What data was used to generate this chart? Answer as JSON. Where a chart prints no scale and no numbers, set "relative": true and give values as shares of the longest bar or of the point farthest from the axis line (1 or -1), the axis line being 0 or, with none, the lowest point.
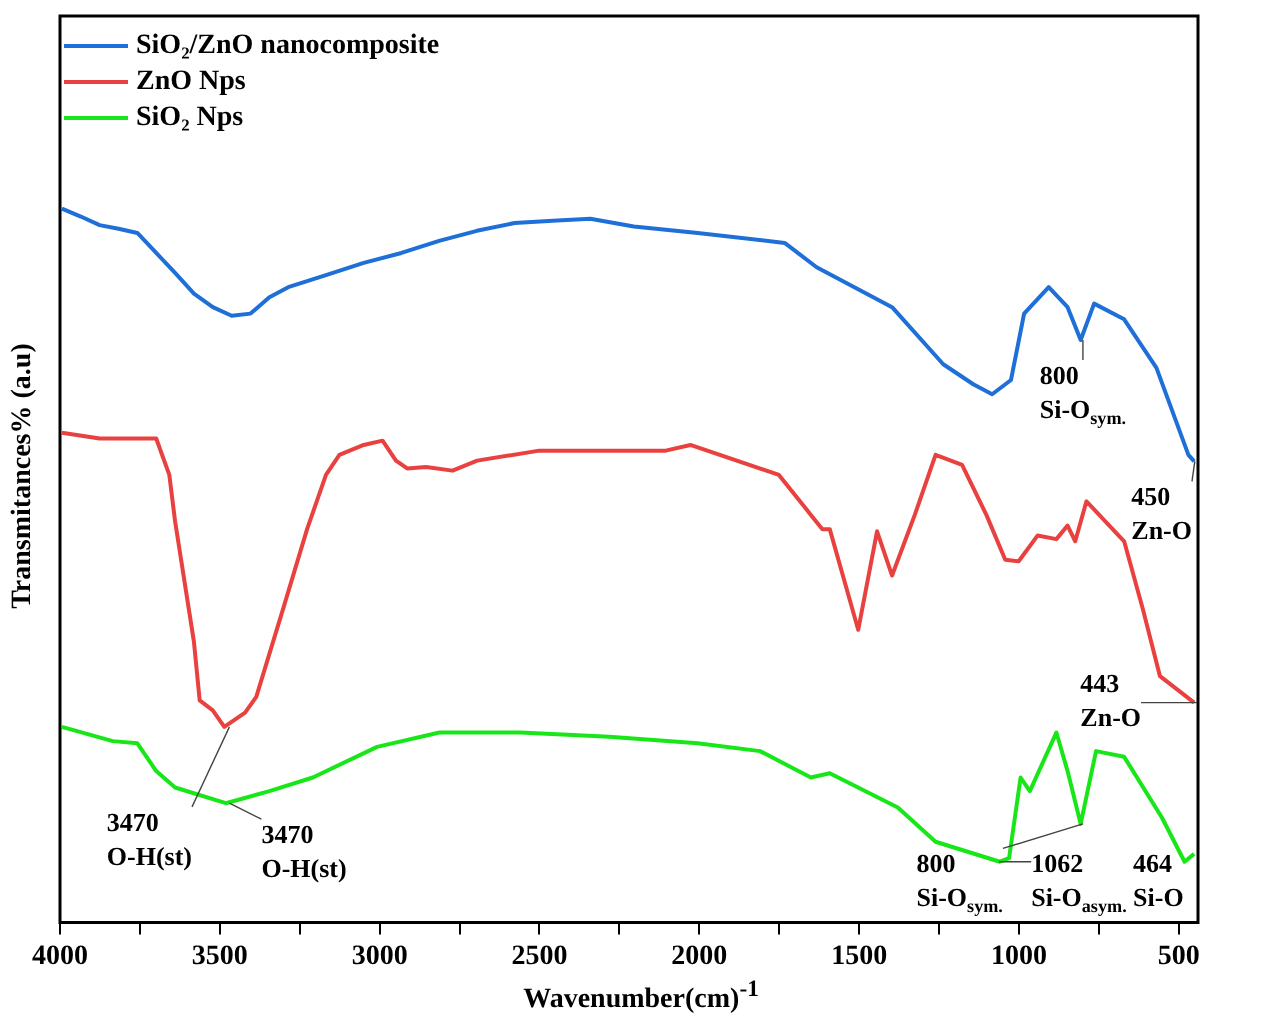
{
  "chart_data": {
    "type": "line",
    "relative": true,
    "xlabel": "Wavenumber(cm)$^{-1}$",
    "ylabel": "Transmitances% (a.u)",
    "legend": "top left",
    "marker": "none",
    "grid": false,
    "xlim": [
      4000,
      440
    ],
    "xticks": [
      4000,
      {
        "value": 3750,
        "label": null
      },
      3500,
      {
        "value": 3250,
        "label": null
      },
      3000,
      {
        "value": 2750,
        "label": null
      },
      2500,
      {
        "value": 2250,
        "label": null
      },
      2000,
      {
        "value": 1750,
        "label": null
      },
      1500,
      {
        "value": 1250,
        "label": null
      },
      1000,
      {
        "value": 750,
        "label": null
      },
      500
    ],
    "series": [
      {
        "name": "SiO₂/ZnO nanocomposite",
        "color": "#1f6fd8",
        "x": [
          3994,
          3935,
          3876,
          3817,
          3758,
          3699,
          3640,
          3581,
          3522,
          3463,
          3404,
          3345,
          3286,
          3168,
          3050,
          2932,
          2814,
          2696,
          2578,
          2459,
          2341,
          2205,
          2005,
          1733,
          1633,
          1397,
          1237,
          1143,
          1084,
          1025,
          984,
          907,
          848,
          807,
          765,
          671,
          570,
          470,
          452
        ],
        "values": [
          1.0,
          0.989,
          0.977,
          0.972,
          0.966,
          0.938,
          0.91,
          0.881,
          0.862,
          0.85,
          0.853,
          0.876,
          0.89,
          0.907,
          0.924,
          0.938,
          0.955,
          0.969,
          0.98,
          0.983,
          0.986,
          0.975,
          0.966,
          0.952,
          0.918,
          0.862,
          0.782,
          0.754,
          0.74,
          0.76,
          0.853,
          0.89,
          0.862,
          0.816,
          0.867,
          0.845,
          0.777,
          0.655,
          0.646
        ]
      },
      {
        "name": "ZnO Nps",
        "color": "#e8413f",
        "x": [
          3994,
          3876,
          3699,
          3658,
          3640,
          3581,
          3563,
          3522,
          3486,
          3421,
          3386,
          3303,
          3227,
          3168,
          3126,
          3050,
          2991,
          2949,
          2914,
          2855,
          2772,
          2695,
          2501,
          2282,
          2105,
          2028,
          1751,
          1651,
          1615,
          1592,
          1503,
          1444,
          1397,
          1326,
          1261,
          1178,
          1102,
          1043,
          1001,
          942,
          883,
          848,
          824,
          789,
          730,
          671,
          612,
          559,
          452
        ],
        "values": [
          0.686,
          0.678,
          0.678,
          0.627,
          0.562,
          0.393,
          0.311,
          0.297,
          0.274,
          0.294,
          0.316,
          0.438,
          0.551,
          0.627,
          0.655,
          0.669,
          0.675,
          0.647,
          0.636,
          0.638,
          0.633,
          0.647,
          0.661,
          0.661,
          0.661,
          0.669,
          0.627,
          0.571,
          0.551,
          0.551,
          0.41,
          0.548,
          0.486,
          0.571,
          0.655,
          0.641,
          0.571,
          0.508,
          0.506,
          0.542,
          0.537,
          0.556,
          0.534,
          0.59,
          0.562,
          0.534,
          0.438,
          0.345,
          0.308
        ]
      },
      {
        "name": "SiO₂ Nps",
        "color": "#19e619",
        "x": [
          3994,
          3835,
          3758,
          3699,
          3640,
          3481,
          3345,
          3209,
          3008,
          2813,
          2560,
          2282,
          2005,
          1810,
          1651,
          1592,
          1379,
          1261,
          1060,
          1031,
          995,
          966,
          883,
          848,
          807,
          759,
          671,
          553,
          482,
          452
        ],
        "values": [
          0.274,
          0.254,
          0.251,
          0.212,
          0.189,
          0.167,
          0.184,
          0.203,
          0.246,
          0.266,
          0.266,
          0.26,
          0.251,
          0.24,
          0.203,
          0.209,
          0.161,
          0.113,
          0.085,
          0.09,
          0.203,
          0.184,
          0.266,
          0.212,
          0.138,
          0.24,
          0.232,
          0.147,
          0.085,
          0.096
        ]
      }
    ],
    "annotations": [
      {
        "text": "800\nSi-O$_{sym.}$",
        "x": 800,
        "y": 0.816
      },
      {
        "text": "450\nZn-O",
        "x": 450,
        "y": 0.646
      },
      {
        "text": "3470\nO-H(st)",
        "x": 3470,
        "y": 0.274
      },
      {
        "text": "443\nZn-O",
        "x": 443,
        "y": 0.308
      },
      {
        "text": "3470\nO-H(st)",
        "x": 3470,
        "y": 0.167
      },
      {
        "text": "1062\nSi-O$_{asym.}$",
        "x": 1062,
        "y": 0.085
      },
      {
        "text": "800\nSi-O$_{sym.}$",
        "x": 800,
        "y": 0.138
      },
      {
        "text": "464\nSi-O",
        "x": 464,
        "y": 0.085
      }
    ]
  }
}
